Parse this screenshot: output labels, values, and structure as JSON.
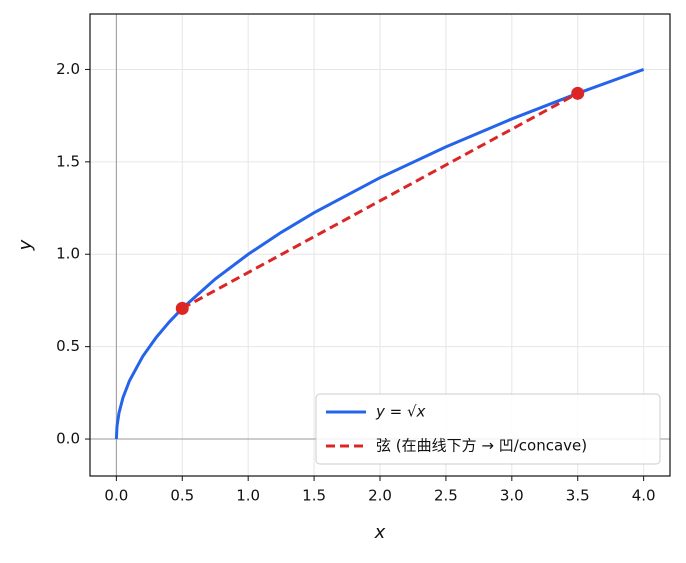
{
  "chart_data": {
    "type": "line",
    "xlabel": "x",
    "ylabel": "y",
    "xlim": [
      -0.2,
      4.2
    ],
    "ylim": [
      -0.2,
      2.3
    ],
    "xticks": [
      {
        "value": 0,
        "label": "0.0"
      },
      {
        "value": 0.5,
        "label": "0.5"
      },
      {
        "value": 1,
        "label": "1.0"
      },
      {
        "value": 1.5,
        "label": "1.5"
      },
      {
        "value": 2,
        "label": "2.0"
      },
      {
        "value": 2.5,
        "label": "2.5"
      },
      {
        "value": 3,
        "label": "3.0"
      },
      {
        "value": 3.5,
        "label": "3.5"
      },
      {
        "value": 4,
        "label": "4.0"
      }
    ],
    "yticks": [
      {
        "value": 0,
        "label": "0.0"
      },
      {
        "value": 0.5,
        "label": "0.5"
      },
      {
        "value": 1,
        "label": "1.0"
      },
      {
        "value": 1.5,
        "label": "1.5"
      },
      {
        "value": 2,
        "label": "2.0"
      }
    ],
    "grid": true,
    "legend": "lower right",
    "series": [
      {
        "name": "y = √x",
        "color": "#2563eb",
        "dash": false,
        "x": [
          0,
          0.005,
          0.02,
          0.05,
          0.1,
          0.2,
          0.3,
          0.4,
          0.5,
          0.75,
          1,
          1.25,
          1.5,
          2,
          2.5,
          3,
          3.5,
          4
        ],
        "values": [
          0,
          0.0707,
          0.1414,
          0.2236,
          0.3162,
          0.4472,
          0.5477,
          0.6325,
          0.7071,
          0.866,
          1,
          1.118,
          1.2247,
          1.4142,
          1.5811,
          1.7321,
          1.8708,
          2
        ]
      },
      {
        "name": "弦 (在曲线下方 → 凹/concave)",
        "color": "#dc2626",
        "dash": true,
        "x": [
          0.5,
          3.5
        ],
        "values": [
          0.7071,
          1.8708
        ]
      }
    ],
    "points": {
      "color": "#dc2626",
      "x": [
        0.5,
        3.5
      ],
      "values": [
        0.7071,
        1.8708
      ]
    }
  }
}
